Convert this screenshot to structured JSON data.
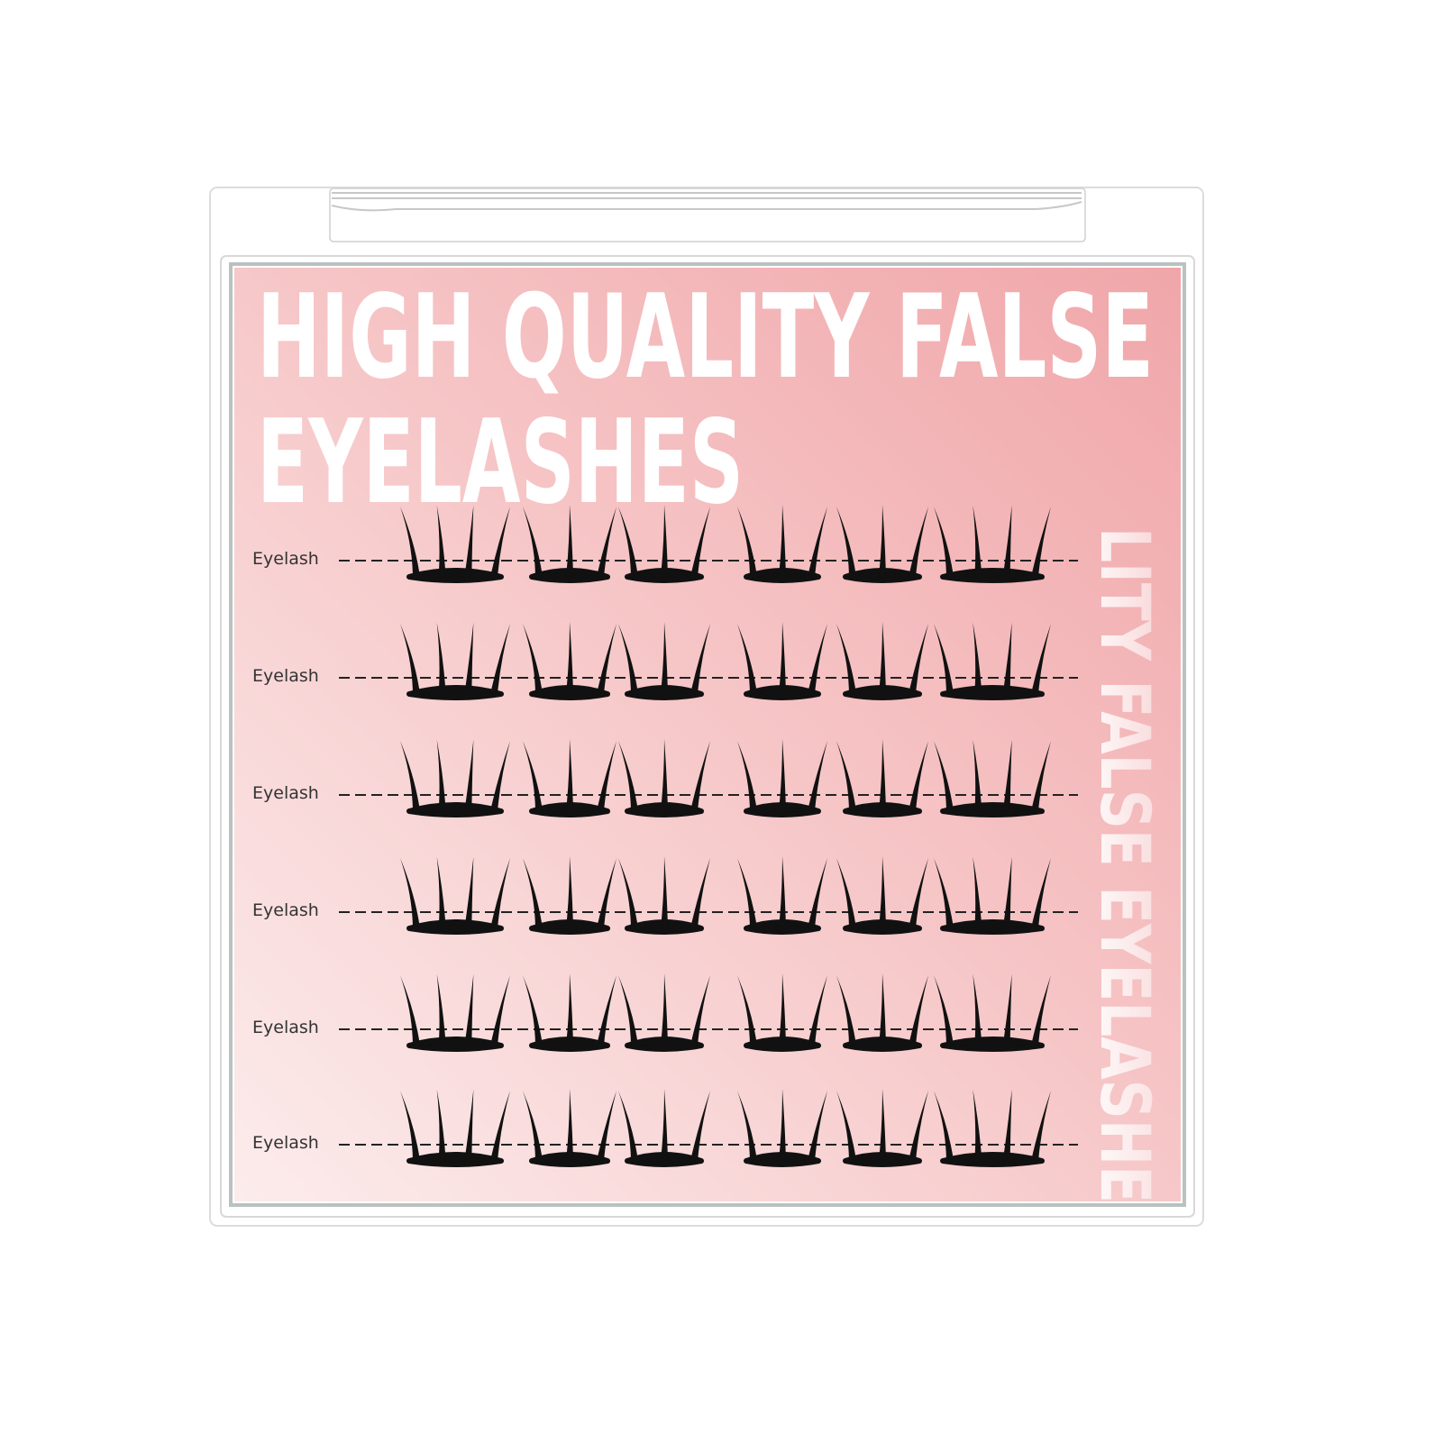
{
  "product": {
    "headline_line1": "HIGH QUALITY FALSE",
    "headline_line2": "EYELASHES",
    "side_text": "LITY FALSE EYELASHE",
    "row_label": "Eyelash",
    "rows": [
      {
        "label": "Eyelash"
      },
      {
        "label": "Eyelash"
      },
      {
        "label": "Eyelash"
      },
      {
        "label": "Eyelash"
      },
      {
        "label": "Eyelash"
      },
      {
        "label": "Eyelash"
      }
    ],
    "clusters_per_row": [
      4,
      3,
      3,
      3,
      3,
      4
    ]
  },
  "colors": {
    "pink_top": "#f0a6a9",
    "pink_bottom": "#fcecec",
    "lash": "#111111",
    "label": "#333333"
  }
}
